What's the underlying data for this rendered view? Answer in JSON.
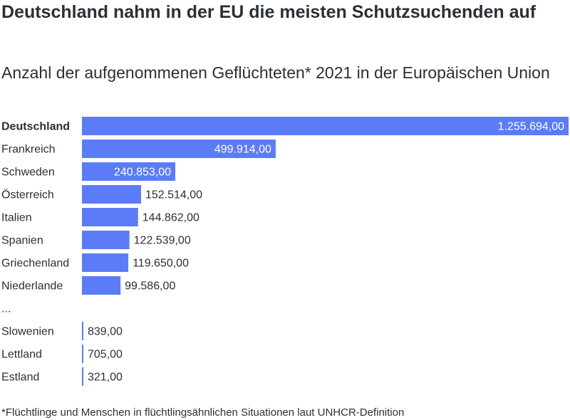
{
  "title": "Deutschland nahm in der EU die meisten Schutzsuchenden auf",
  "subtitle": "Anzahl der aufgenommenen Geflüchteten* 2021 in der Europäischen Union",
  "footnote": "*Flüchtlinge und Menschen in flüchtlingsähnlichen Situationen laut UNHCR-Definition",
  "bar_color": "#5b7cf6",
  "chart_data": {
    "type": "bar",
    "orientation": "horizontal",
    "categories": [
      "Deutschland",
      "Frankreich",
      "Schweden",
      "Österreich",
      "Italien",
      "Spanien",
      "Griechenland",
      "Niederlande",
      "...",
      "Slowenien",
      "Lettland",
      "Estland"
    ],
    "values": [
      1255694,
      499914,
      240853,
      152514,
      144862,
      122539,
      119650,
      99586,
      null,
      839,
      705,
      321
    ],
    "value_labels": [
      "1.255.694,00",
      "499.914,00",
      "240.853,00",
      "152.514,00",
      "144.862,00",
      "122.539,00",
      "119.650,00",
      "99.586,00",
      "",
      "839,00",
      "705,00",
      "321,00"
    ],
    "highlight": "Deutschland",
    "xlim": [
      0,
      1255694
    ],
    "grid": false,
    "legend": "none"
  }
}
